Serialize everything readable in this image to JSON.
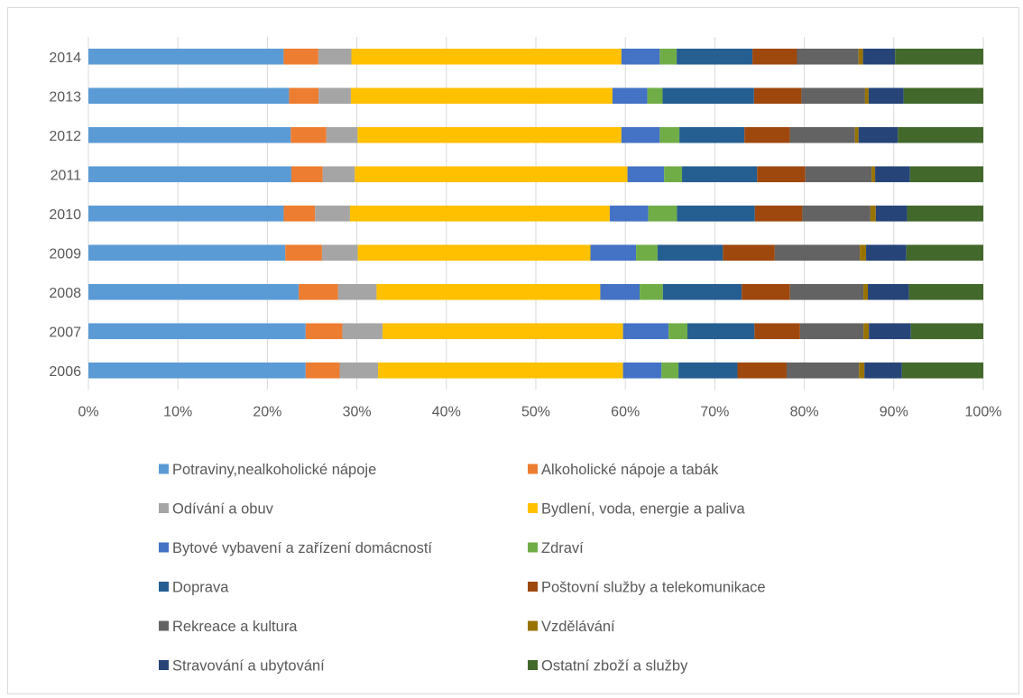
{
  "chart_data": {
    "type": "bar",
    "orientation": "horizontal",
    "stacked": "percent",
    "categories": [
      "2014",
      "2013",
      "2012",
      "2011",
      "2010",
      "2009",
      "2008",
      "2007",
      "2006"
    ],
    "xlim": [
      0,
      100
    ],
    "x_ticks": [
      "0%",
      "10%",
      "20%",
      "30%",
      "40%",
      "50%",
      "60%",
      "70%",
      "80%",
      "90%",
      "100%"
    ],
    "grid": true,
    "legend_position": "bottom",
    "series": [
      {
        "name": "Potraviny,nealkoholické nápoje",
        "color": "#5b9bd5",
        "values": [
          21.9,
          22.4,
          22.7,
          22.7,
          21.8,
          22.0,
          23.5,
          24.3,
          24.3
        ]
      },
      {
        "name": "Alkoholické nápoje a tabák",
        "color": "#ed7d31",
        "values": [
          3.9,
          3.3,
          4.0,
          3.5,
          3.5,
          4.1,
          4.4,
          4.1,
          3.8
        ]
      },
      {
        "name": "Odívání a obuv",
        "color": "#a5a5a5",
        "values": [
          3.7,
          3.6,
          3.5,
          3.6,
          3.9,
          4.0,
          4.3,
          4.5,
          4.3
        ]
      },
      {
        "name": "Bydlení, voda, energie a paliva",
        "color": "#ffc000",
        "values": [
          30.3,
          29.2,
          29.6,
          30.5,
          29.0,
          26.0,
          25.0,
          26.9,
          27.4
        ]
      },
      {
        "name": "Bytové vybavení a zařízení domácností",
        "color": "#4472c4",
        "values": [
          4.3,
          3.9,
          4.3,
          4.1,
          4.3,
          5.1,
          4.4,
          5.1,
          4.3
        ]
      },
      {
        "name": "Zdraví",
        "color": "#70ad47",
        "values": [
          1.9,
          1.7,
          2.2,
          2.0,
          3.2,
          2.4,
          2.6,
          2.1,
          1.9
        ]
      },
      {
        "name": "Doprava",
        "color": "#255e91",
        "values": [
          8.5,
          10.2,
          7.3,
          8.4,
          8.7,
          7.3,
          8.8,
          7.5,
          6.6
        ]
      },
      {
        "name": "Poštovní služby a telekomunikace",
        "color": "#9e480e",
        "values": [
          5.0,
          5.3,
          5.1,
          5.4,
          5.3,
          5.8,
          5.4,
          5.1,
          5.5
        ]
      },
      {
        "name": "Rekreace a kultura",
        "color": "#636363",
        "values": [
          6.9,
          7.1,
          7.3,
          7.4,
          7.6,
          9.5,
          8.2,
          7.1,
          8.1
        ]
      },
      {
        "name": "Vzdělávání",
        "color": "#997300",
        "values": [
          0.5,
          0.4,
          0.4,
          0.4,
          0.6,
          0.7,
          0.5,
          0.6,
          0.6
        ]
      },
      {
        "name": "Stravování a ubytování",
        "color": "#264478",
        "values": [
          3.6,
          3.9,
          4.4,
          3.9,
          3.5,
          4.5,
          4.6,
          4.7,
          4.2
        ]
      },
      {
        "name": "Ostatní zboží a služby",
        "color": "#43682b",
        "values": [
          9.9,
          8.9,
          9.6,
          8.2,
          8.5,
          8.6,
          8.3,
          8.1,
          9.1
        ]
      }
    ]
  }
}
